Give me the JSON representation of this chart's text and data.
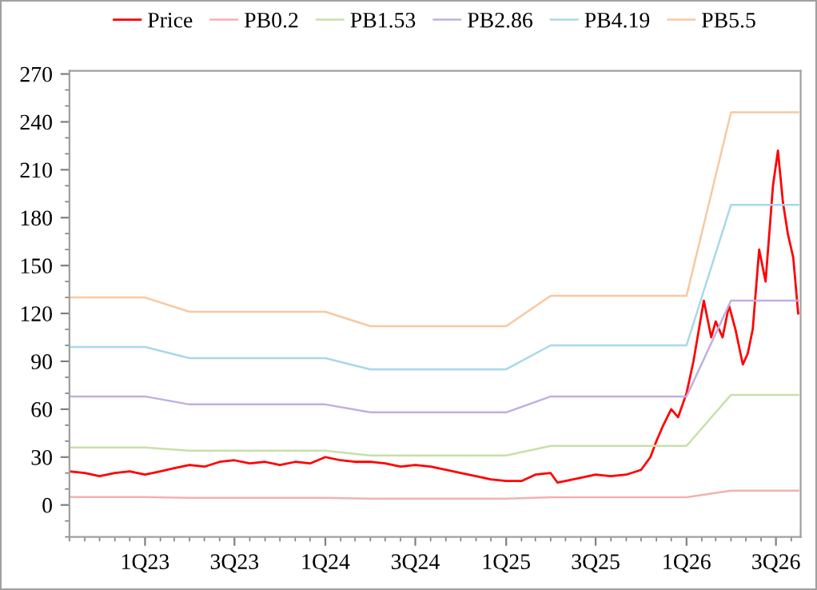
{
  "chart_data": {
    "type": "line",
    "x": [
      "2022-08-01",
      "2023-01-01",
      "2023-04-01",
      "2024-01-01",
      "2024-04-01",
      "2025-01-01",
      "2025-04-01",
      "2026-01-01",
      "2026-04-01",
      "2026-08-15"
    ],
    "series": [
      {
        "name": "Price",
        "color": "#ff0000",
        "x": [
          "2022-08-01",
          "2022-09-01",
          "2022-10-01",
          "2022-11-01",
          "2022-12-01",
          "2023-01-01",
          "2023-02-01",
          "2023-03-01",
          "2023-04-01",
          "2023-05-01",
          "2023-06-01",
          "2023-07-01",
          "2023-08-01",
          "2023-09-01",
          "2023-10-01",
          "2023-11-01",
          "2023-12-01",
          "2024-01-01",
          "2024-02-01",
          "2024-03-01",
          "2024-04-01",
          "2024-05-01",
          "2024-06-01",
          "2024-07-01",
          "2024-08-01",
          "2024-09-01",
          "2024-10-01",
          "2024-11-01",
          "2024-12-01",
          "2025-01-01",
          "2025-02-01",
          "2025-03-01",
          "2025-04-01",
          "2025-04-15",
          "2025-05-01",
          "2025-06-01",
          "2025-07-01",
          "2025-08-01",
          "2025-09-01",
          "2025-10-01",
          "2025-10-20",
          "2025-11-01",
          "2025-11-15",
          "2025-12-01",
          "2025-12-15",
          "2026-01-01",
          "2026-01-15",
          "2026-02-05",
          "2026-02-20",
          "2026-03-01",
          "2026-03-15",
          "2026-03-28",
          "2026-04-10",
          "2026-04-25",
          "2026-05-05",
          "2026-05-15",
          "2026-05-28",
          "2026-06-10",
          "2026-06-25",
          "2026-07-05",
          "2026-07-15",
          "2026-07-25",
          "2026-08-05",
          "2026-08-15"
        ],
        "values": [
          21,
          20,
          18,
          20,
          21,
          19,
          21,
          23,
          25,
          24,
          27,
          28,
          26,
          27,
          25,
          27,
          26,
          30,
          28,
          27,
          27,
          26,
          24,
          25,
          24,
          22,
          20,
          18,
          16,
          15,
          15,
          19,
          20,
          14,
          15,
          17,
          19,
          18,
          19,
          22,
          30,
          40,
          50,
          60,
          55,
          70,
          90,
          128,
          105,
          115,
          105,
          125,
          110,
          88,
          95,
          110,
          160,
          140,
          200,
          222,
          190,
          170,
          155,
          120
        ]
      },
      {
        "name": "PB0.2",
        "color": "#f4b0b0",
        "values": [
          5,
          5,
          4.4,
          4.4,
          4,
          4,
          4.8,
          4.8,
          9,
          9
        ]
      },
      {
        "name": "PB1.53",
        "color": "#c8e0a8",
        "values": [
          36,
          36,
          34,
          34,
          31,
          31,
          37,
          37,
          69,
          69
        ]
      },
      {
        "name": "PB2.86",
        "color": "#c0b0e0",
        "values": [
          68,
          68,
          63,
          63,
          58,
          58,
          68,
          68,
          128,
          128
        ]
      },
      {
        "name": "PB4.19",
        "color": "#a8d8e8",
        "values": [
          99,
          99,
          92,
          92,
          85,
          85,
          100,
          100,
          188,
          188
        ]
      },
      {
        "name": "PB5.5",
        "color": "#f8c8a0",
        "values": [
          130,
          130,
          121,
          121,
          112,
          112,
          131,
          131,
          246,
          246
        ]
      }
    ],
    "xlim": [
      "2022-08-01",
      "2026-08-20"
    ],
    "xticks": [
      {
        "value": "2023-01-01",
        "label": "1Q23"
      },
      {
        "value": "2023-07-01",
        "label": "3Q23"
      },
      {
        "value": "2024-01-01",
        "label": "1Q24"
      },
      {
        "value": "2024-07-01",
        "label": "3Q24"
      },
      {
        "value": "2025-01-01",
        "label": "1Q25"
      },
      {
        "value": "2025-07-01",
        "label": "3Q25"
      },
      {
        "value": "2026-01-01",
        "label": "1Q26"
      },
      {
        "value": "2026-07-01",
        "label": "3Q26"
      }
    ],
    "ylim": [
      -20,
      272
    ],
    "yticks": [
      0,
      30,
      60,
      90,
      120,
      150,
      180,
      210,
      240,
      270
    ],
    "legend": "top",
    "grid": false,
    "marker": "none",
    "line_style": "solid"
  }
}
